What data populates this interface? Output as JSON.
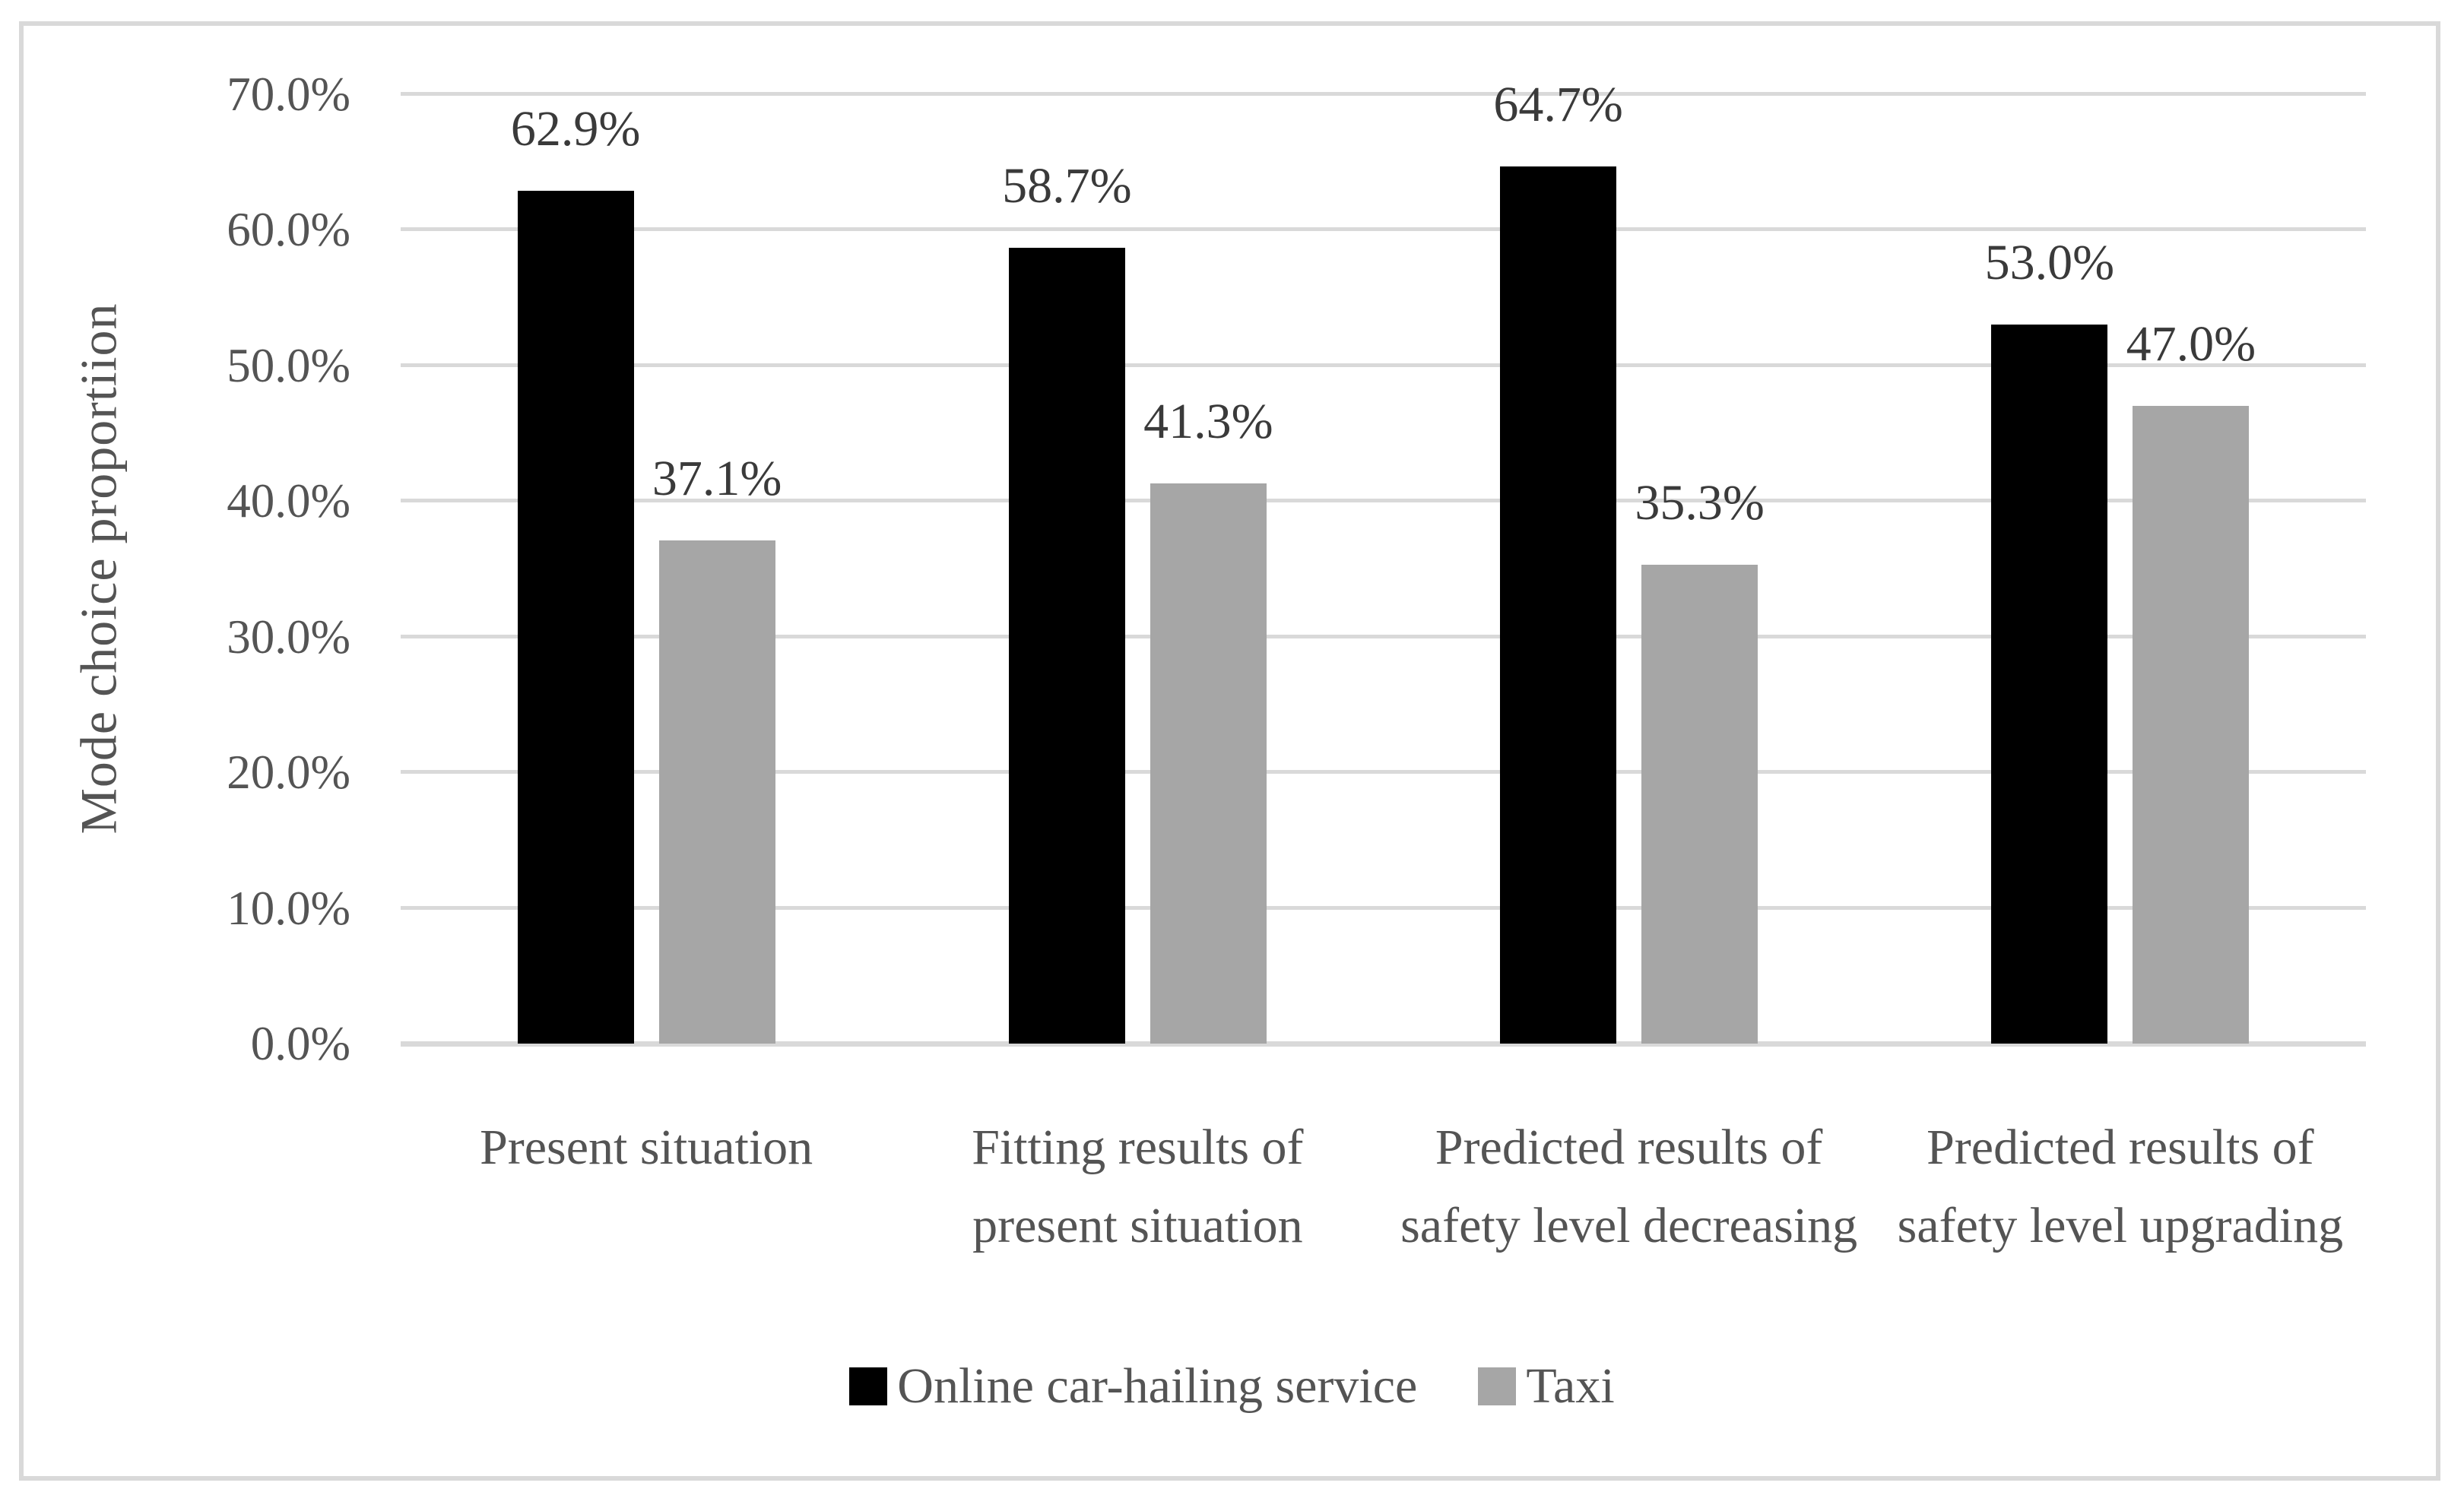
{
  "chart_data": {
    "type": "bar",
    "title": "",
    "ylabel": "Mode choice proportiion",
    "xlabel": "",
    "ylim": [
      0,
      70
    ],
    "grid": true,
    "legend_position": "bottom",
    "categories": [
      "Present situation",
      "Fitting results of present situation",
      "Predicted results of safety level decreasing",
      "Predicted results of safety level upgrading"
    ],
    "series": [
      {
        "name": "Online car-hailing service",
        "color": "#000000",
        "values": [
          62.9,
          58.7,
          64.7,
          53.0
        ],
        "labels": [
          "62.9%",
          "58.7%",
          "64.7%",
          "53.0%"
        ]
      },
      {
        "name": "Taxi",
        "color": "#a6a6a6",
        "values": [
          37.1,
          41.3,
          35.3,
          47.0
        ],
        "labels": [
          "37.1%",
          "41.3%",
          "35.3%",
          "47.0%"
        ]
      }
    ],
    "yticks": [
      {
        "value": 0,
        "label": "0.0%"
      },
      {
        "value": 10,
        "label": "10.0%"
      },
      {
        "value": 20,
        "label": "20.0%"
      },
      {
        "value": 30,
        "label": "30.0%"
      },
      {
        "value": 40,
        "label": "40.0%"
      },
      {
        "value": 50,
        "label": "50.0%"
      },
      {
        "value": 60,
        "label": "60.0%"
      },
      {
        "value": 70,
        "label": "70.0%"
      }
    ]
  },
  "colors": {
    "gridline": "#d9d9d9",
    "frame_border": "#d9d9d9",
    "axis_text": "#545454",
    "data_label_text": "#3a3a3a",
    "background": "#ffffff"
  }
}
